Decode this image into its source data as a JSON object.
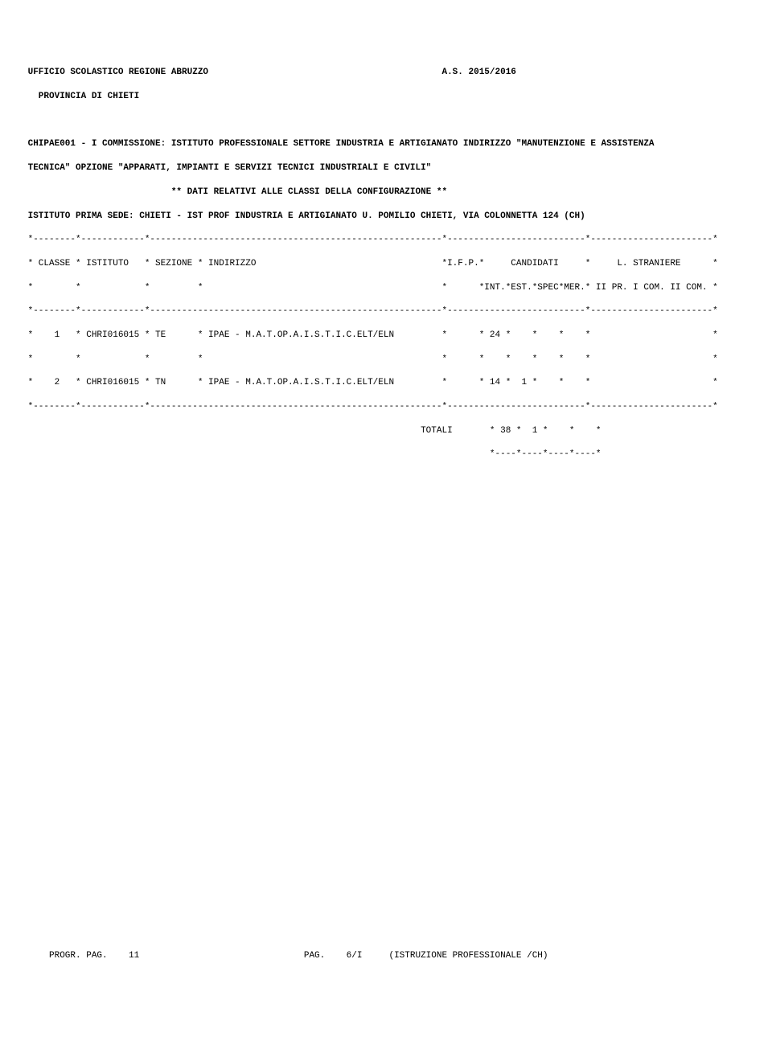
{
  "header": {
    "office": " UFFICIO SCOLASTICO REGIONE ABRUZZO                                            A.S. 2015/2016",
    "province": "   PROVINCIA DI CHIETI"
  },
  "commission": {
    "line1": " CHIPAE001 - I COMMISSIONE: ISTITUTO PROFESSIONALE SETTORE INDUSTRIA E ARTIGIANATO INDIRIZZO \"MANUTENZIONE E ASSISTENZA",
    "line2": " TECNICA\" OPZIONE \"APPARATI, IMPIANTI E SERVIZI TECNICI INDUSTRIALI E CIVILI\"",
    "config": "                            ** DATI RELATIVI ALLE CLASSI DELLA CONFIGURAZIONE **",
    "sede": " ISTITUTO PRIMA SEDE: CHIETI - IST PROF INDUSTRIA E ARTIGIANATO U. POMILIO CHIETI, VIA COLONNETTA 124 (CH)"
  },
  "table": {
    "rule_top": " *--------*------------*-------------------------------------------------------*--------------------------*-----------------------*",
    "hdr1": " * CLASSE * ISTITUTO   * SEZIONE * INDIRIZZO                                   *I.F.P.*     CANDIDATI     *     L. STRANIERE      *",
    "hdr2": " *        *            *         *                                             *      *INT.*EST.*SPEC*MER.* II PR. I COM. II COM. *",
    "rule_mid": " *--------*------------*-------------------------------------------------------*--------------------------*-----------------------*",
    "row1": " *    1   * CHRI016015 * TE      * IPAE - M.A.T.OP.A.I.S.T.I.C.ELT/ELN         *      * 24 *    *    *    *                       *",
    "row_spacer": " *        *            *         *                                             *      *    *    *    *    *                       *",
    "row2": " *    2   * CHRI016015 * TN      * IPAE - M.A.T.OP.A.I.S.T.I.C.ELT/ELN         *      * 14 *  1 *    *    *                       *",
    "rule_bot": " *--------*------------*-------------------------------------------------------*--------------------------*-----------------------*",
    "totals": "                                                                           TOTALI       * 38 *  1 *    *    *",
    "totals_rule": "                                                                                        *----*----*----*----*"
  },
  "footer": {
    "line": "     PROGR. PAG.    11                               PAG.    6/I     (ISTRUZIONE PROFESSIONALE /CH)"
  }
}
